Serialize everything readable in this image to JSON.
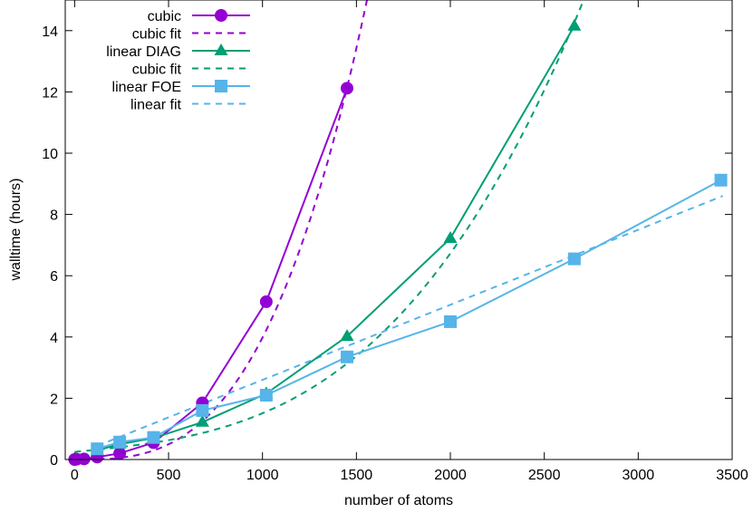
{
  "chart_data": {
    "type": "line",
    "title": "",
    "xlabel": "number of atoms",
    "ylabel": "walltime (hours)",
    "xlim": [
      -50,
      3500
    ],
    "ylim": [
      0,
      15
    ],
    "xticks": [
      0,
      500,
      1000,
      1500,
      2000,
      2500,
      3000,
      3500
    ],
    "yticks": [
      0,
      2,
      4,
      6,
      8,
      10,
      12,
      14
    ],
    "grid": false,
    "legend_position": "top-left",
    "series": [
      {
        "name": "cubic",
        "kind": "data",
        "color": "#9400d3",
        "marker": "circle",
        "x": [
          0,
          10,
          50,
          120,
          240,
          420,
          680,
          1020,
          1450
        ],
        "y": [
          0.0,
          0.01,
          0.02,
          0.08,
          0.2,
          0.55,
          1.85,
          5.15,
          12.12
        ]
      },
      {
        "name": "cubic fit",
        "kind": "fit",
        "color": "#9400d3",
        "marker": "none",
        "fit": {
          "form": "cubic",
          "a": 3.98e-09,
          "x_max": 1600
        }
      },
      {
        "name": "linear DIAG",
        "kind": "data",
        "color": "#009e73",
        "marker": "triangle",
        "x": [
          120,
          240,
          420,
          680,
          1020,
          1450,
          2000,
          2660
        ],
        "y": [
          0.3,
          0.5,
          0.7,
          1.22,
          2.15,
          4.02,
          7.22,
          14.15
        ]
      },
      {
        "name": "cubic fit",
        "kind": "fit",
        "color": "#009e73",
        "marker": "none",
        "fit": {
          "form": "cubic",
          "a": 6.6e-10,
          "b": 0.0006,
          "c": 0.25,
          "x_max": 2720
        }
      },
      {
        "name": "linear FOE",
        "kind": "data",
        "color": "#56b4e9",
        "marker": "square",
        "x": [
          120,
          240,
          420,
          680,
          1020,
          1450,
          2000,
          2660,
          3440
        ],
        "y": [
          0.35,
          0.57,
          0.72,
          1.6,
          2.1,
          3.35,
          4.5,
          6.55,
          9.12
        ]
      },
      {
        "name": "linear fit",
        "kind": "fit",
        "color": "#56b4e9",
        "marker": "none",
        "fit": {
          "form": "linear",
          "slope": 0.00245,
          "intercept": 0.15,
          "x_min": 120,
          "x_max": 3450
        }
      }
    ]
  }
}
